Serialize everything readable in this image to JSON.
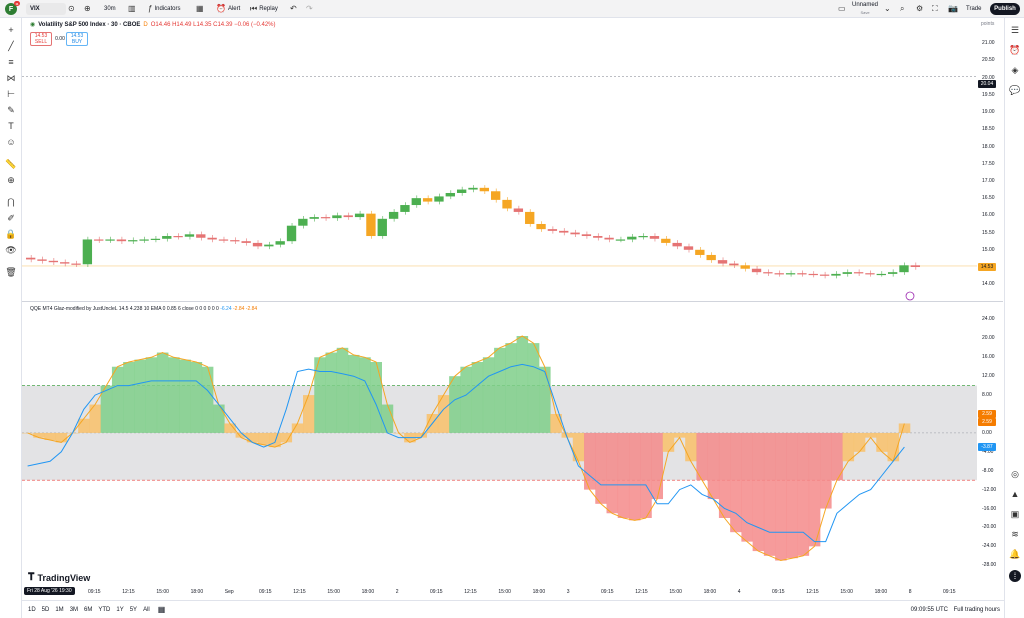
{
  "topbar": {
    "logo_letter": "F",
    "notif_count": "11",
    "symbol": "VIX",
    "timeframe": "30m",
    "indicators_label": "Indicators",
    "alert_label": "Alert",
    "replay_label": "Replay",
    "layout_name": "Unnamed",
    "layout_status": "Save",
    "trade_label": "Trade",
    "publish_label": "Publish"
  },
  "main_legend": {
    "title": "Volatility S&P 500 Index · 30 · CBOE",
    "status": "D",
    "ohlc": "O14.46 H14.49 L14.35 C14.39 −0.06 (−0.42%)",
    "sell_price": "14.53",
    "sell_label": "SELL",
    "spread": "0.00",
    "buy_price": "14.53",
    "buy_label": "BUY"
  },
  "indicator_legend": {
    "name": "QQE MT4 Glaz-modified by JustUncleL 14.5 4.238 10 EMA 0 0.85 6 close",
    "params": "0 0 0 0 0 0",
    "v1": "-6.24",
    "v2": "-2.84 -2.84"
  },
  "price_axis": {
    "currency": "points",
    "ticks": [
      "21.00",
      "20.50",
      "20.00",
      "19.50",
      "19.00",
      "18.50",
      "18.00",
      "17.50",
      "17.00",
      "16.50",
      "16.00",
      "15.50",
      "15.00",
      "14.50",
      "14.00"
    ],
    "crosshair_value": "20.04",
    "last_price": "14.53"
  },
  "indicator_axis": {
    "ticks": [
      "24.00",
      "20.00",
      "16.00",
      "12.00",
      "8.00",
      "4.00",
      "0.00",
      "-4.00",
      "-8.00",
      "-12.00",
      "-16.00",
      "-20.00",
      "-24.00",
      "-28.00"
    ],
    "tag_orange_1": "2.59",
    "tag_orange_2": "2.59",
    "tag_blue": "-3.87"
  },
  "time_axis": {
    "labels": [
      "Fri 28 Aug '26",
      "19:30",
      "09:15",
      "12:15",
      "15:00",
      "18:00",
      "Sep",
      "09:15",
      "12:15",
      "15:00",
      "18:00",
      "2",
      "09:15",
      "12:15",
      "15:00",
      "18:00",
      "3",
      "09:15",
      "12:15",
      "15:00",
      "18:00",
      "4",
      "09:15",
      "12:15",
      "15:00",
      "18:00",
      "8",
      "09:15"
    ]
  },
  "bottombar": {
    "timeframes": [
      "1D",
      "5D",
      "1M",
      "3M",
      "6M",
      "YTD",
      "1Y",
      "5Y",
      "All"
    ],
    "clock": "09:09:55 UTC",
    "session": "Full trading hours"
  },
  "branding": "TradingView",
  "colors": {
    "up": "#4caf50",
    "down": "#e57373",
    "orange": "#f5a623",
    "blue": "#2196f3",
    "hist_green": "#7fcf8a",
    "hist_red": "#f48a8a",
    "hist_orange": "#f9c16a",
    "band": "#e3e3e5"
  },
  "chart_data": [
    {
      "type": "candlestick",
      "title": "Volatility S&P 500 Index · 30 · CBOE",
      "ylim": [
        13.6,
        21.5
      ],
      "close_series": [
        14.72,
        14.68,
        14.64,
        14.6,
        14.58,
        15.3,
        15.28,
        15.3,
        15.25,
        15.28,
        15.3,
        15.32,
        15.4,
        15.38,
        15.45,
        15.35,
        15.3,
        15.28,
        15.25,
        15.2,
        15.1,
        15.15,
        15.25,
        15.7,
        15.9,
        15.95,
        15.92,
        16.0,
        15.95,
        16.05,
        15.4,
        15.9,
        16.1,
        16.3,
        16.5,
        16.4,
        16.55,
        16.65,
        16.75,
        16.8,
        16.7,
        16.45,
        16.2,
        16.1,
        15.75,
        15.6,
        15.55,
        15.5,
        15.45,
        15.4,
        15.35,
        15.3,
        15.3,
        15.38,
        15.4,
        15.32,
        15.2,
        15.1,
        15.0,
        14.85,
        14.7,
        14.6,
        14.55,
        14.45,
        14.35,
        14.32,
        14.3,
        14.32,
        14.3,
        14.28,
        14.25,
        14.3,
        14.35,
        14.32,
        14.3,
        14.3,
        14.35,
        14.55,
        14.5
      ]
    },
    {
      "type": "area",
      "title": "QQE MT4 Glaz-modified by JustUncleL",
      "ylim": [
        -29,
        26
      ],
      "histogram": [
        0,
        -1,
        -1.5,
        -2,
        0,
        3,
        6,
        10,
        14,
        15,
        15.5,
        16,
        17,
        16,
        15.5,
        15,
        14,
        6,
        2,
        -1,
        -2,
        -2.5,
        -3,
        -2,
        2,
        8,
        16,
        17,
        18,
        16.5,
        16,
        15,
        6,
        0,
        -2,
        -1,
        4,
        8,
        12,
        14,
        15,
        16,
        18,
        19,
        20.5,
        19,
        14,
        4,
        -1,
        -6,
        -12,
        -15,
        -17,
        -18,
        -18.5,
        -18,
        -14,
        -4,
        -1,
        -6,
        -10,
        -14,
        -18,
        -21,
        -23,
        -25,
        -26,
        -27,
        -26.5,
        -26,
        -24,
        -16,
        -10,
        -6,
        -4,
        -1,
        -4,
        -6,
        2
      ],
      "signal": [
        -7,
        -6.5,
        -6,
        -4,
        0,
        5,
        8,
        9,
        10,
        10,
        10.5,
        11,
        11,
        11,
        11,
        11,
        9,
        6,
        3,
        0,
        -2,
        -3,
        -2,
        5,
        13,
        13.5,
        13,
        13,
        12.5,
        12,
        11,
        6,
        0,
        -1,
        -1,
        -1,
        2,
        5,
        7,
        8,
        10,
        12,
        13,
        14,
        14.5,
        14,
        13,
        6,
        -1,
        -7,
        -9,
        -11,
        -11,
        -11,
        -11,
        -11,
        -15,
        -15,
        -12,
        -11,
        -13,
        -14,
        -16,
        -17,
        -19,
        -20,
        -21,
        -21,
        -21,
        -21,
        -23,
        -23,
        -17,
        -15,
        -13,
        -12,
        -9,
        -6,
        -3
      ],
      "upper_band": 10,
      "lower_band": -10,
      "zero_line": 0
    }
  ]
}
